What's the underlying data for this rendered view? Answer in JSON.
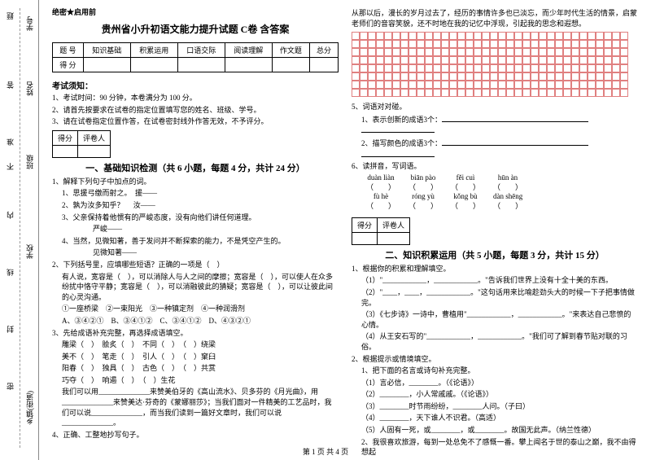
{
  "margin": {
    "labels": [
      "学号",
      "姓名",
      "班级",
      "学校",
      "乡镇(街道)"
    ],
    "hints": [
      "题",
      "答",
      "准",
      "不",
      "内",
      "线",
      "封",
      "密"
    ]
  },
  "confidential": "绝密★启用前",
  "title": "贵州省小升初语文能力提升试题 C卷 含答案",
  "scoreTable": {
    "headers": [
      "题 号",
      "知识基础",
      "积累运用",
      "口语交际",
      "阅读理解",
      "作文题",
      "总分"
    ],
    "row2": "得 分"
  },
  "notice": {
    "head": "考试须知：",
    "items": [
      "1、考试时间：90 分钟，本卷满分为 100 分。",
      "2、请首先按要求在试卷的指定位置填写您的姓名、班级、学号。",
      "3、请在试卷指定位置作答，在试卷密封线外作答无效，不予评分。"
    ]
  },
  "scorebox": {
    "c1": "得分",
    "c2": "评卷人"
  },
  "part1": {
    "title": "一、基础知识检测（共 6 小题，每题 4 分，共计 24 分）",
    "q1": "1、解释下列句子中加点的词。",
    "q1a": "1、思援弓缴而射之。　援——",
    "q1b": "2、孰为汝多知乎？　 汝——",
    "q1c": "3、父亲保持着他惯有的严峻态度，没有向他们讲任何道理。",
    "q1c2": "严峻——",
    "q1d": "4、当然，见微知著，善于发问并不断探索的能力，不是凭空产生的。",
    "q1d2": "见微知著——",
    "q2": "2、下列括号里，应填哪些短语？正确的一项是（　）",
    "q2t": "有人说，宽容是（　），可以消除人与人之间的摩擦；宽容是（　），可以使人在众多纷扰中恪守平静；宽容是（　），可以消融彼此的猜疑；宽容是（　），可以让彼此间的心灵沟通。",
    "q2opts": "①一座桥梁　②一束阳光　③一种镇定剂　④一种润滑剂",
    "q2a": "A、③④②①　B、③④①②　C、③④①②　D、④③②①",
    "q3": "3、先给成语补充完整，再选择成语填空。",
    "q3rows": [
      "雕梁（　）　脍炙（　）　不同（　）　（　）绕梁",
      "美不（　）　笔走（　）　引人（　）　（　）窠臼",
      "阳春（　）　独具（　）　古色（　）　（　）共赏",
      "巧夺（　）　响遏（　）　（　）生花"
    ],
    "q3t1": "我们可以用______________来赞美伯牙的《高山流水》、贝多芬的《月光曲》，用______________来赞美达·芬奇的《蒙娜丽莎》；当我们面对一件精美的工艺品时，我们可以说______________，而当我们读到一篇好文章时，我们可以说______________。",
    "q4": "4、正确、工整地抄写句子。",
    "rightIntro": "从那以后，漫长的岁月过去了，经历的事情许多也已淡忘，而少年时代生活的情景，启蒙老师们的音容笑貌，还不时地在我的记忆中浮现，引起我的思念和遐想。",
    "q5": "5、词语对对碰。",
    "q5a": "1、表示创新的成语3个：",
    "q5b": "2、描写颜色的成语3个：",
    "q6": "6、读拼音，写词语。",
    "pinyin1": [
      "duàn liàn",
      "biān pào",
      "fěi cuì",
      "hūn àn"
    ],
    "pinyin2": [
      "fù hè",
      "róng yù",
      "kǒng bù",
      "dàn shēng"
    ]
  },
  "part2": {
    "title": "二、知识积累运用（共 5 小题，每题 3 分，共计 15 分）",
    "q1": "1、根据你的积累和理解填空。",
    "q1a": "（1）\"____________，____________。\"告诉我们世界上没有十全十美的东西。",
    "q1b": "（2）\"____，____，____________。\"这句话用来比喻趁劲头大的时候一下子把事情做完。",
    "q1c": "（3）《七步诗》一诗中，曹植用\"____________，____________。\"来表达自己悲愤的心情。",
    "q1d": "（4）从王安石写的\"____________，____________。\"我们可了解到春节贴对联的习俗。",
    "q2": "2、根据提示或情境填空。",
    "q2h": "1、把下面的名言或诗句补充完整。",
    "q2a": "（1）言必信，________。（《论语》）",
    "q2b": "（2）________，小人常戚戚。（《论语》）",
    "q2c": "（3）________时节雨纷纷，________人问。（子曰）",
    "q2d": "（4）________，天下谁人不识君。（高适）",
    "q2e": "（5）人固有一死，或________，或________。故国无此声。（纳兰性德）",
    "q2f": "2、我很喜欢旅游，每到一处总免不了感慨一番。攀上闻名于世的泰山之巅，我不由得想起"
  },
  "footer": "第 1 页 共 4 页"
}
